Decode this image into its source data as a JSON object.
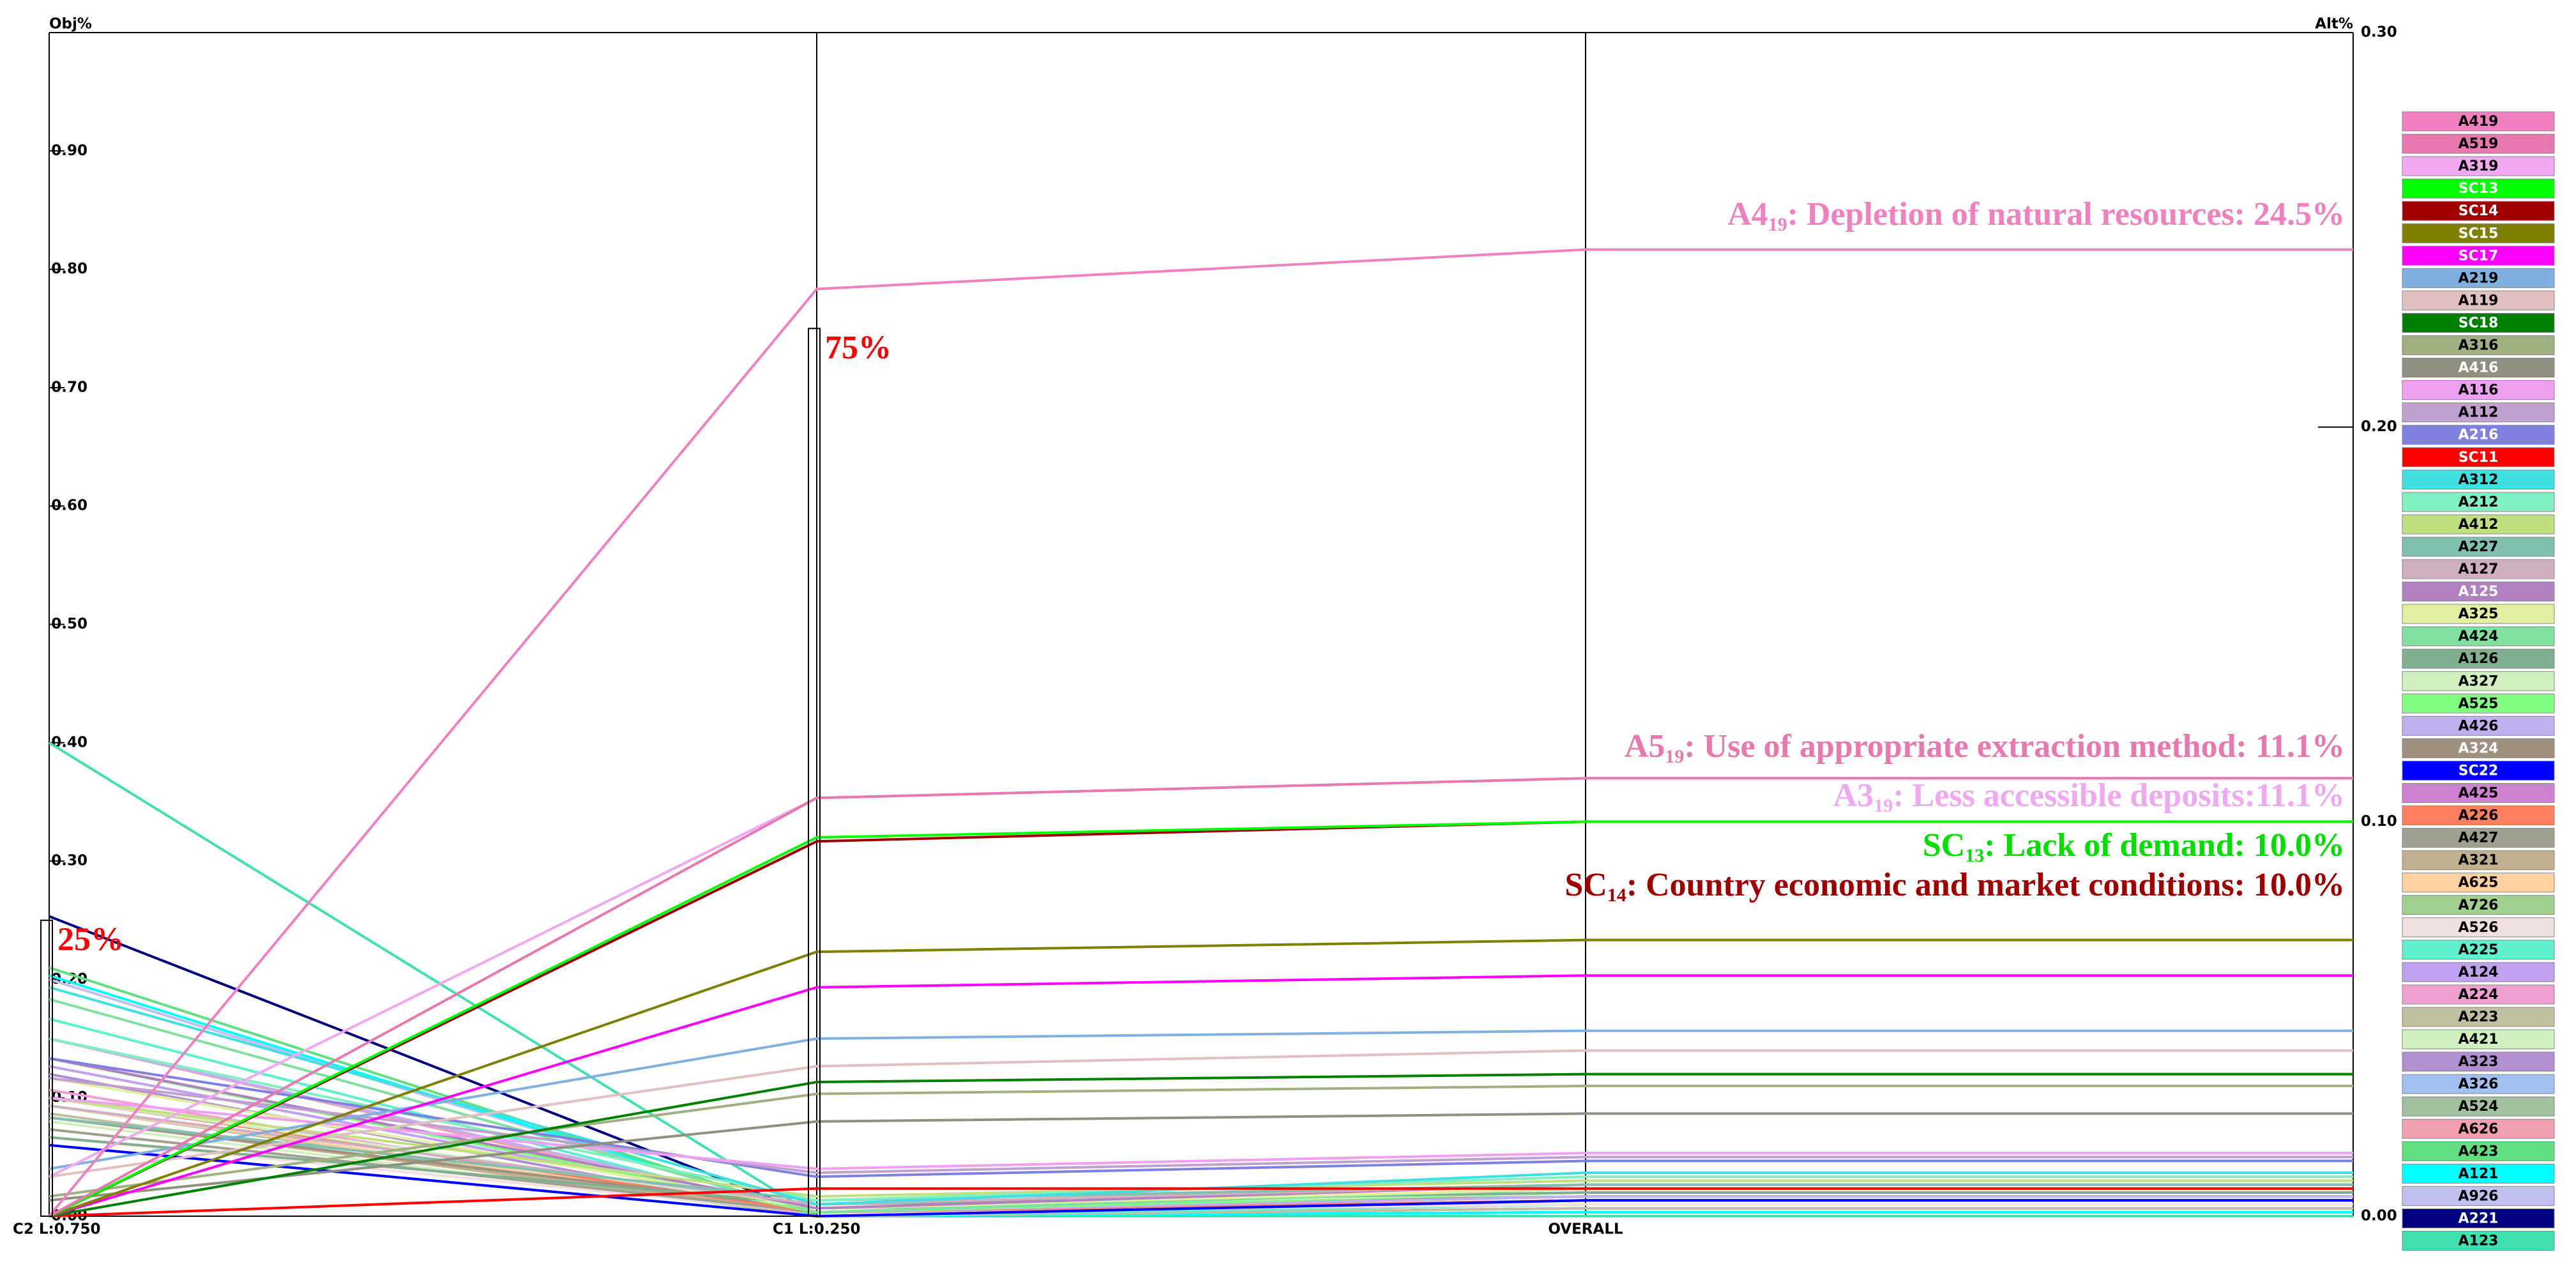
{
  "chart_data": {
    "type": "line",
    "obj_axis_label": "Obj%",
    "alt_axis_label": "Alt%",
    "categories": [
      "C2 L:0.750",
      "C1 L:0.250",
      "OVERALL"
    ],
    "ylim": [
      0,
      1
    ],
    "yticks": [
      {
        "value": 0,
        "label": "0.00"
      },
      {
        "value": 0.1,
        "label": "0.10"
      },
      {
        "value": 0.2,
        "label": "0.20"
      },
      {
        "value": 0.3,
        "label": "0.30"
      },
      {
        "value": 0.4,
        "label": "0.40"
      },
      {
        "value": 0.5,
        "label": "0.50"
      },
      {
        "value": 0.6,
        "label": "0.60"
      },
      {
        "value": 0.7,
        "label": "0.70"
      },
      {
        "value": 0.8,
        "label": "0.80"
      },
      {
        "value": 0.9,
        "label": "0.90"
      }
    ],
    "y2lim": [
      0,
      0.3
    ],
    "y2ticks": [
      {
        "value": 0,
        "label": "0.00"
      },
      {
        "value": 0.1,
        "label": "0.10"
      },
      {
        "value": 0.2,
        "label": "0.20"
      },
      {
        "value": 0.3,
        "label": "0.30"
      }
    ],
    "criteria_bars": {
      "values": [
        0.25,
        0.75
      ],
      "value_labels": [
        "25%",
        "75%"
      ],
      "label_color": "#ff0000"
    },
    "annotations": [
      {
        "main": "A4",
        "sub": "19",
        "rest": ": Depletion of natural resources: 24.5%",
        "color": "#f080c0"
      },
      {
        "main": "A5",
        "sub": "19",
        "rest": ": Use of appropriate extraction method: 11.1%",
        "color": "#e878b0"
      },
      {
        "main": "A3",
        "sub": "19",
        "rest": ": Less accessible deposits:11.1%",
        "color": "#f0a8f0"
      },
      {
        "main": "SC",
        "sub": "13",
        "rest": ": Lack of demand: 10.0%",
        "color": "#00e000"
      },
      {
        "main": "SC",
        "sub": "14",
        "rest": ": Country economic and market conditions: 10.0%",
        "color": "#a00000"
      }
    ],
    "series": [
      {
        "name": "A419",
        "color": "#f080c0",
        "axis": "y2",
        "values": [
          0,
          0.235,
          0.245
        ]
      },
      {
        "name": "A519",
        "color": "#e878b0",
        "axis": "y2",
        "values": [
          0,
          0.106,
          0.111
        ]
      },
      {
        "name": "A319",
        "color": "#f0a8f0",
        "axis": "y2",
        "values": [
          0.01,
          0.106,
          0.111
        ]
      },
      {
        "name": "SC13",
        "color": "#00ff00",
        "axis": "y2",
        "values": [
          0,
          0.096,
          0.1
        ]
      },
      {
        "name": "SC14",
        "color": "#a00000",
        "axis": "y2",
        "values": [
          0,
          0.095,
          0.1
        ]
      },
      {
        "name": "SC15",
        "color": "#808000",
        "axis": "y2",
        "values": [
          0,
          0.067,
          0.07
        ]
      },
      {
        "name": "SC17",
        "color": "#ff00ff",
        "axis": "y2",
        "values": [
          0,
          0.058,
          0.061
        ]
      },
      {
        "name": "A219",
        "color": "#80b0e0",
        "axis": "y2",
        "values": [
          0.012,
          0.045,
          0.047
        ]
      },
      {
        "name": "A119",
        "color": "#e0c0c0",
        "axis": "y2",
        "values": [
          0.01,
          0.038,
          0.042
        ]
      },
      {
        "name": "SC18",
        "color": "#008000",
        "axis": "y2",
        "values": [
          0,
          0.034,
          0.036
        ]
      },
      {
        "name": "A316",
        "color": "#a0b080",
        "axis": "y2",
        "values": [
          0.005,
          0.031,
          0.033
        ]
      },
      {
        "name": "A416",
        "color": "#909080",
        "axis": "y2",
        "values": [
          0.004,
          0.024,
          0.026
        ]
      },
      {
        "name": "A116",
        "color": "#f0a0f0",
        "axis": "y2",
        "values": [
          0.03,
          0.012,
          0.016
        ]
      },
      {
        "name": "A112",
        "color": "#c0a0d0",
        "axis": "y2",
        "values": [
          0.035,
          0.011,
          0.015
        ]
      },
      {
        "name": "A216",
        "color": "#8080e0",
        "axis": "y2",
        "values": [
          0.04,
          0.01,
          0.014
        ]
      },
      {
        "name": "SC11",
        "color": "#ff0000",
        "axis": "y2",
        "values": [
          0,
          0.007,
          0.007
        ]
      },
      {
        "name": "A312",
        "color": "#40e0e0",
        "axis": "y2",
        "values": [
          0.058,
          0.003,
          0.011
        ]
      },
      {
        "name": "A212",
        "color": "#80f0c0",
        "axis": "y2",
        "values": [
          0.045,
          0.004,
          0.01
        ]
      },
      {
        "name": "A412",
        "color": "#c0e080",
        "axis": "y2",
        "values": [
          0.03,
          0.005,
          0.009
        ]
      },
      {
        "name": "A227",
        "color": "#80c0b0",
        "axis": "y2",
        "values": [
          0.025,
          0.004,
          0.008
        ]
      },
      {
        "name": "A127",
        "color": "#d0b0c0",
        "axis": "y2",
        "values": [
          0.028,
          0.003,
          0.008
        ]
      },
      {
        "name": "A125",
        "color": "#b080c0",
        "axis": "y2",
        "values": [
          0.04,
          0.002,
          0.008
        ]
      },
      {
        "name": "A325",
        "color": "#e0f0a0",
        "axis": "y2",
        "values": [
          0.035,
          0.002,
          0.007
        ]
      },
      {
        "name": "A424",
        "color": "#80e0a0",
        "axis": "y2",
        "values": [
          0.055,
          0.001,
          0.007
        ]
      },
      {
        "name": "A126",
        "color": "#80b090",
        "axis": "y2",
        "values": [
          0.02,
          0.003,
          0.006
        ]
      },
      {
        "name": "A327",
        "color": "#d0f0c0",
        "axis": "y2",
        "values": [
          0.03,
          0.002,
          0.006
        ]
      },
      {
        "name": "A525",
        "color": "#80ff80",
        "axis": "y2",
        "values": [
          0.04,
          0.001,
          0.006
        ]
      },
      {
        "name": "A426",
        "color": "#c0b0f0",
        "axis": "y2",
        "values": [
          0.045,
          0.001,
          0.005
        ]
      },
      {
        "name": "A324",
        "color": "#a09080",
        "axis": "y2",
        "values": [
          0.025,
          0.002,
          0.005
        ]
      },
      {
        "name": "SC22",
        "color": "#0000ff",
        "axis": "y2",
        "values": [
          0.018,
          0,
          0.004
        ]
      },
      {
        "name": "A425",
        "color": "#d080d0",
        "axis": "y2",
        "values": [
          0.04,
          0.001,
          0.005
        ]
      },
      {
        "name": "A226",
        "color": "#ff8060",
        "axis": "y2",
        "values": [
          0.03,
          0.001,
          0.004
        ]
      },
      {
        "name": "A427",
        "color": "#a0a090",
        "axis": "y2",
        "values": [
          0.022,
          0.001,
          0.004
        ]
      },
      {
        "name": "A321",
        "color": "#c0b090",
        "axis": "y2",
        "values": [
          0.025,
          0.001,
          0.004
        ]
      },
      {
        "name": "A625",
        "color": "#ffd0a0",
        "axis": "y2",
        "values": [
          0.028,
          0.001,
          0.004
        ]
      },
      {
        "name": "A726",
        "color": "#a0d090",
        "axis": "y2",
        "values": [
          0.03,
          0.001,
          0.004
        ]
      },
      {
        "name": "A526",
        "color": "#f0e0e0",
        "axis": "y2",
        "values": [
          0.02,
          0.001,
          0.003
        ]
      },
      {
        "name": "A225",
        "color": "#60f0d0",
        "axis": "y2",
        "values": [
          0.05,
          0,
          0.003
        ]
      },
      {
        "name": "A124",
        "color": "#c0a0f0",
        "axis": "y2",
        "values": [
          0.038,
          0.001,
          0.003
        ]
      },
      {
        "name": "A224",
        "color": "#f0a0d0",
        "axis": "y2",
        "values": [
          0.032,
          0,
          0.003
        ]
      },
      {
        "name": "A223",
        "color": "#c0c0a0",
        "axis": "y2",
        "values": [
          0.026,
          0,
          0.002
        ]
      },
      {
        "name": "A421",
        "color": "#d0f0c0",
        "axis": "y2",
        "values": [
          0.024,
          0,
          0.002
        ]
      },
      {
        "name": "A323",
        "color": "#b090d0",
        "axis": "y2",
        "values": [
          0.036,
          0,
          0.002
        ]
      },
      {
        "name": "A326",
        "color": "#a0c0f0",
        "axis": "y2",
        "values": [
          0.05,
          0,
          0.002
        ]
      },
      {
        "name": "A524",
        "color": "#a0c0a0",
        "axis": "y2",
        "values": [
          0.028,
          0,
          0.002
        ]
      },
      {
        "name": "A626",
        "color": "#f0a0b0",
        "axis": "y2",
        "values": [
          0.045,
          0,
          0.002
        ]
      },
      {
        "name": "A423",
        "color": "#60e080",
        "axis": "y2",
        "values": [
          0.063,
          0,
          0.002
        ]
      },
      {
        "name": "A121",
        "color": "#00ffff",
        "axis": "y2",
        "values": [
          0.061,
          0,
          0.001
        ]
      },
      {
        "name": "A926",
        "color": "#c0c0f0",
        "axis": "y2",
        "values": [
          0.06,
          0,
          0.001
        ]
      },
      {
        "name": "A221",
        "color": "#000080",
        "axis": "y2",
        "values": [
          0.076,
          0,
          0.001
        ]
      },
      {
        "name": "A123",
        "color": "#40e0b0",
        "axis": "y2",
        "values": [
          0.12,
          0,
          0
        ]
      }
    ]
  }
}
